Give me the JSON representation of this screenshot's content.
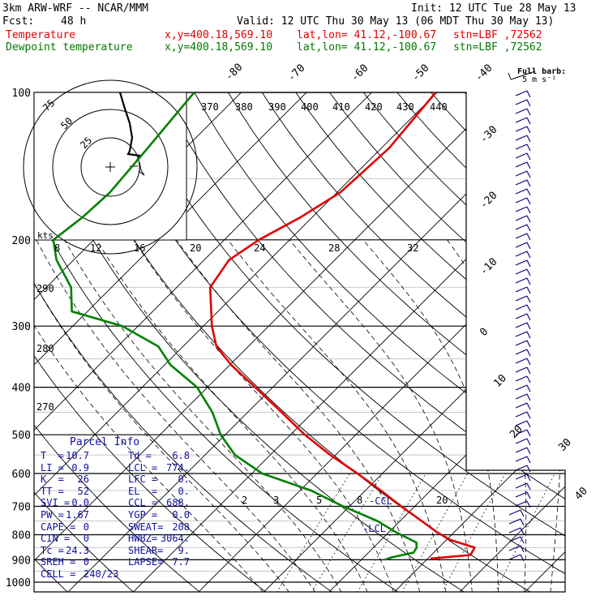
{
  "header": {
    "model": "3km ARW-WRF -- NCAR/MMM",
    "init": "Init: 12 UTC Tue 28 May 13",
    "fcst_label": "Fcst:",
    "fcst_value": "48 h",
    "valid": "Valid: 12 UTC Thu 30 May 13 (06 MDT Thu 30 May 13)",
    "temperature_label": "Temperature",
    "dewpoint_label": "Dewpoint temperature",
    "xy": "x,y=400.18,569.10",
    "latlon": "lat,lon= 41.12,-100.67",
    "station": "stn=LBF ,72562"
  },
  "barb_legend": {
    "line1": "Full barb:",
    "line2": "5 m s⁻¹"
  },
  "hodograph": {
    "units_label": "kts",
    "ring_labels": [
      "25",
      "50",
      "75"
    ]
  },
  "parcel_info": {
    "title": "Parcel Info",
    "rows": [
      [
        "T  =",
        "10.7",
        "Td =",
        "6.8"
      ],
      [
        "LI =",
        "0.9",
        "LCL =",
        "774."
      ],
      [
        "K  =",
        "26",
        "LFC =",
        "0."
      ],
      [
        "TT =",
        "52",
        "EL  =",
        "0."
      ],
      [
        "SVI =",
        "0.0",
        "CCL =",
        "688."
      ],
      [
        "PW =",
        "1.67",
        "YGP =",
        "0.0"
      ],
      [
        "CAPE =",
        "0",
        "SWEAT=",
        "208"
      ],
      [
        "CIN =",
        "0",
        "HWBZ=",
        "3064."
      ],
      [
        "Tc =",
        "24.3",
        "SHEAR=",
        "9."
      ],
      [
        "SREH =",
        "0",
        "LAPSE=",
        "7.7"
      ],
      [
        "CELL =",
        "240/23",
        "",
        ""
      ]
    ]
  },
  "annotations": {
    "ccl": "-CCL",
    "lcl": "-LCL"
  },
  "colors": {
    "temperature": "#e00000",
    "dewpoint": "#008000",
    "parcel": "#1010a0",
    "grid": "#000000"
  },
  "chart_data": {
    "type": "line",
    "diagram": "skew-T log-p",
    "y_axis": {
      "scale": "log",
      "ticks": [
        100,
        200,
        300,
        400,
        500,
        600,
        700,
        800,
        900,
        1000
      ],
      "ylim": [
        1000,
        100
      ]
    },
    "isotherm_labels": [
      "-80",
      "-70",
      "-60",
      "-50",
      "-40",
      "-30",
      "-20",
      "-10",
      "0",
      "10",
      "20",
      "30",
      "40"
    ],
    "theta_labels": [
      "370",
      "380",
      "390",
      "400",
      "410",
      "420",
      "430",
      "440",
      "290",
      "280",
      "270"
    ],
    "mixing_ratio_labels": [
      "8",
      "12",
      "16",
      "20",
      "24",
      "28",
      "32",
      "2",
      "3",
      "5",
      "8",
      "20"
    ],
    "series": [
      {
        "name": "Temperature",
        "points": [
          [
            100,
            -60.2
          ],
          [
            130,
            -58.8
          ],
          [
            160,
            -59.5
          ],
          [
            180,
            -61.8
          ],
          [
            200,
            -64.7
          ],
          [
            220,
            -66.2
          ],
          [
            250,
            -64.9
          ],
          [
            300,
            -58.7
          ],
          [
            330,
            -54.9
          ],
          [
            360,
            -49.8
          ],
          [
            400,
            -42.7
          ],
          [
            450,
            -34.8
          ],
          [
            500,
            -27.8
          ],
          [
            550,
            -20.8
          ],
          [
            600,
            -13.8
          ],
          [
            650,
            -7.6
          ],
          [
            700,
            -2.1
          ],
          [
            750,
            3.3
          ],
          [
            790,
            7.3
          ],
          [
            820,
            10.6
          ],
          [
            850,
            15.5
          ],
          [
            880,
            16.0
          ],
          [
            895,
            10.4
          ]
        ]
      },
      {
        "name": "Dewpoint temperature",
        "points": [
          [
            100,
            -97.2
          ],
          [
            130,
            -95.8
          ],
          [
            160,
            -94.8
          ],
          [
            180,
            -95.2
          ],
          [
            200,
            -96.2
          ],
          [
            220,
            -92.6
          ],
          [
            250,
            -86.2
          ],
          [
            280,
            -82.4
          ],
          [
            300,
            -72.4
          ],
          [
            330,
            -63.8
          ],
          [
            360,
            -59.1
          ],
          [
            400,
            -51.6
          ],
          [
            450,
            -45.4
          ],
          [
            500,
            -40.7
          ],
          [
            550,
            -35.4
          ],
          [
            600,
            -28.4
          ],
          [
            650,
            -18.3
          ],
          [
            700,
            -11.0
          ],
          [
            750,
            -3.5
          ],
          [
            790,
            1.0
          ],
          [
            830,
            5.8
          ],
          [
            850,
            6.6
          ],
          [
            870,
            6.9
          ],
          [
            890,
            4.3
          ],
          [
            900,
            3.6
          ]
        ]
      }
    ]
  }
}
